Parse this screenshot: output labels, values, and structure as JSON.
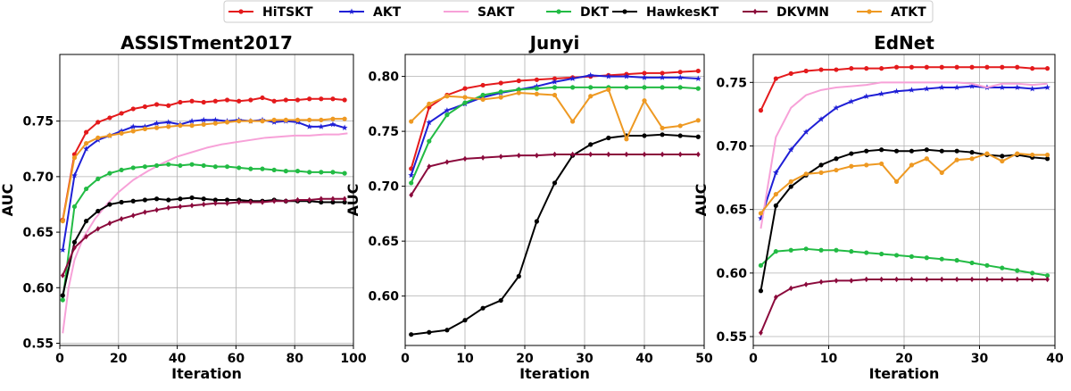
{
  "legend": {
    "placement": "top-center",
    "items": [
      {
        "label": "HiTSKT",
        "color": "#e41a1c",
        "marker": "circle"
      },
      {
        "label": "AKT",
        "color": "#1f1fd6",
        "marker": "star"
      },
      {
        "label": "SAKT",
        "color": "#f7a1d8",
        "marker": "none"
      },
      {
        "label": "DKT",
        "color": "#22bb44",
        "marker": "circle"
      },
      {
        "label": "HawkesKT",
        "color": "#000000",
        "marker": "circle"
      },
      {
        "label": "DKVMN",
        "color": "#8b0a3c",
        "marker": "diamond"
      },
      {
        "label": "ATKT",
        "color": "#ee9922",
        "marker": "circle"
      }
    ]
  },
  "chart_data": [
    {
      "type": "line",
      "title": "ASSISTment2017",
      "xlabel": "Iteration",
      "ylabel": "AUC",
      "xlim": [
        0,
        100
      ],
      "ylim": [
        0.548,
        0.81
      ],
      "xticks": [
        "0",
        "20",
        "40",
        "60",
        "80",
        "100"
      ],
      "xtick_values": [
        0,
        20,
        40,
        60,
        80,
        100
      ],
      "yticks": [
        "0.55",
        "0.60",
        "0.65",
        "0.70",
        "0.75"
      ],
      "ytick_values": [
        0.55,
        0.6,
        0.65,
        0.7,
        0.75
      ],
      "grid": true,
      "series": [
        {
          "name": "HiTSKT",
          "x": [
            1,
            5,
            9,
            13,
            17,
            21,
            25,
            29,
            33,
            37,
            41,
            45,
            49,
            53,
            57,
            61,
            65,
            69,
            73,
            77,
            81,
            85,
            89,
            93,
            97
          ],
          "y": [
            0.661,
            0.72,
            0.74,
            0.749,
            0.753,
            0.757,
            0.761,
            0.763,
            0.765,
            0.764,
            0.767,
            0.768,
            0.767,
            0.768,
            0.769,
            0.768,
            0.769,
            0.771,
            0.768,
            0.769,
            0.769,
            0.77,
            0.77,
            0.77,
            0.769
          ]
        },
        {
          "name": "AKT",
          "x": [
            1,
            5,
            9,
            13,
            17,
            21,
            25,
            29,
            33,
            37,
            41,
            45,
            49,
            53,
            57,
            61,
            65,
            69,
            73,
            77,
            81,
            85,
            89,
            93,
            97
          ],
          "y": [
            0.634,
            0.701,
            0.725,
            0.733,
            0.737,
            0.741,
            0.745,
            0.745,
            0.748,
            0.749,
            0.747,
            0.75,
            0.751,
            0.751,
            0.75,
            0.751,
            0.75,
            0.751,
            0.749,
            0.75,
            0.749,
            0.745,
            0.745,
            0.747,
            0.744
          ]
        },
        {
          "name": "SAKT",
          "x": [
            1,
            3,
            5,
            8,
            12,
            16,
            20,
            25,
            30,
            35,
            40,
            45,
            50,
            55,
            60,
            65,
            70,
            75,
            80,
            85,
            90,
            95,
            98
          ],
          "y": [
            0.559,
            0.6,
            0.625,
            0.645,
            0.662,
            0.675,
            0.686,
            0.697,
            0.705,
            0.712,
            0.718,
            0.722,
            0.726,
            0.729,
            0.731,
            0.733,
            0.735,
            0.736,
            0.737,
            0.737,
            0.738,
            0.738,
            0.739
          ]
        },
        {
          "name": "DKT",
          "x": [
            1,
            5,
            9,
            13,
            17,
            21,
            25,
            29,
            33,
            37,
            41,
            45,
            49,
            53,
            57,
            61,
            65,
            69,
            73,
            77,
            81,
            85,
            89,
            93,
            97
          ],
          "y": [
            0.589,
            0.673,
            0.689,
            0.698,
            0.703,
            0.706,
            0.708,
            0.709,
            0.71,
            0.711,
            0.71,
            0.711,
            0.71,
            0.709,
            0.709,
            0.708,
            0.707,
            0.707,
            0.706,
            0.705,
            0.705,
            0.704,
            0.704,
            0.704,
            0.703
          ]
        },
        {
          "name": "HawkesKT",
          "x": [
            1,
            5,
            9,
            13,
            17,
            21,
            25,
            29,
            33,
            37,
            41,
            45,
            49,
            53,
            57,
            61,
            65,
            69,
            73,
            77,
            81,
            85,
            89,
            93,
            97
          ],
          "y": [
            0.593,
            0.641,
            0.66,
            0.669,
            0.675,
            0.677,
            0.678,
            0.679,
            0.68,
            0.679,
            0.68,
            0.681,
            0.68,
            0.679,
            0.679,
            0.679,
            0.678,
            0.678,
            0.679,
            0.678,
            0.678,
            0.678,
            0.677,
            0.677,
            0.677
          ]
        },
        {
          "name": "DKVMN",
          "x": [
            1,
            5,
            9,
            13,
            17,
            21,
            25,
            29,
            33,
            37,
            41,
            45,
            49,
            53,
            57,
            61,
            65,
            69,
            73,
            77,
            81,
            85,
            89,
            93,
            97
          ],
          "y": [
            0.611,
            0.636,
            0.646,
            0.653,
            0.658,
            0.662,
            0.665,
            0.668,
            0.67,
            0.672,
            0.673,
            0.674,
            0.675,
            0.676,
            0.676,
            0.677,
            0.677,
            0.677,
            0.678,
            0.678,
            0.679,
            0.679,
            0.68,
            0.68,
            0.68
          ]
        },
        {
          "name": "ATKT",
          "x": [
            1,
            5,
            9,
            13,
            17,
            21,
            25,
            29,
            33,
            37,
            41,
            45,
            49,
            53,
            57,
            61,
            65,
            69,
            73,
            77,
            81,
            85,
            89,
            93,
            97
          ],
          "y": [
            0.66,
            0.717,
            0.73,
            0.735,
            0.737,
            0.739,
            0.741,
            0.743,
            0.744,
            0.745,
            0.746,
            0.746,
            0.747,
            0.748,
            0.749,
            0.75,
            0.75,
            0.75,
            0.751,
            0.751,
            0.751,
            0.751,
            0.751,
            0.752,
            0.752
          ]
        }
      ]
    },
    {
      "type": "line",
      "title": "Junyi",
      "xlabel": "Iteration",
      "ylabel": "AUC",
      "xlim": [
        0,
        50
      ],
      "ylim": [
        0.555,
        0.82
      ],
      "xticks": [
        "0",
        "10",
        "20",
        "30",
        "40",
        "50"
      ],
      "xtick_values": [
        0,
        10,
        20,
        30,
        40,
        50
      ],
      "yticks": [
        "0.60",
        "0.65",
        "0.70",
        "0.75",
        "0.80"
      ],
      "ytick_values": [
        0.6,
        0.65,
        0.7,
        0.75,
        0.8
      ],
      "grid": true,
      "series": [
        {
          "name": "HiTSKT",
          "x": [
            1,
            4,
            7,
            10,
            13,
            16,
            19,
            22,
            25,
            28,
            31,
            34,
            37,
            40,
            43,
            46,
            49
          ],
          "y": [
            0.716,
            0.772,
            0.783,
            0.789,
            0.792,
            0.794,
            0.796,
            0.797,
            0.798,
            0.799,
            0.8,
            0.801,
            0.802,
            0.803,
            0.803,
            0.804,
            0.805
          ]
        },
        {
          "name": "AKT",
          "x": [
            1,
            4,
            7,
            10,
            13,
            16,
            19,
            22,
            25,
            28,
            31,
            34,
            37,
            40,
            43,
            46,
            49
          ],
          "y": [
            0.71,
            0.758,
            0.769,
            0.775,
            0.781,
            0.785,
            0.788,
            0.791,
            0.795,
            0.798,
            0.801,
            0.8,
            0.8,
            0.799,
            0.799,
            0.799,
            0.798
          ]
        },
        {
          "name": "DKT",
          "x": [
            1,
            4,
            7,
            10,
            13,
            16,
            19,
            22,
            25,
            28,
            31,
            34,
            37,
            40,
            43,
            46,
            49
          ],
          "y": [
            0.703,
            0.741,
            0.765,
            0.776,
            0.783,
            0.786,
            0.788,
            0.789,
            0.79,
            0.79,
            0.79,
            0.79,
            0.79,
            0.79,
            0.79,
            0.79,
            0.789
          ]
        },
        {
          "name": "HawkesKT",
          "x": [
            1,
            4,
            7,
            10,
            13,
            16,
            19,
            22,
            25,
            28,
            31,
            34,
            37,
            40,
            43,
            46,
            49
          ],
          "y": [
            0.565,
            0.567,
            0.569,
            0.578,
            0.589,
            0.596,
            0.618,
            0.668,
            0.703,
            0.728,
            0.738,
            0.744,
            0.746,
            0.746,
            0.747,
            0.746,
            0.745
          ]
        },
        {
          "name": "DKVMN",
          "x": [
            1,
            4,
            7,
            10,
            13,
            16,
            19,
            22,
            25,
            28,
            31,
            34,
            37,
            40,
            43,
            46,
            49
          ],
          "y": [
            0.692,
            0.718,
            0.722,
            0.725,
            0.726,
            0.727,
            0.728,
            0.728,
            0.729,
            0.729,
            0.729,
            0.729,
            0.729,
            0.729,
            0.729,
            0.729,
            0.729
          ]
        },
        {
          "name": "ATKT",
          "x": [
            1,
            4,
            7,
            10,
            13,
            16,
            19,
            22,
            25,
            28,
            31,
            34,
            37,
            40,
            43,
            46,
            49
          ],
          "y": [
            0.759,
            0.775,
            0.782,
            0.781,
            0.779,
            0.781,
            0.785,
            0.784,
            0.783,
            0.759,
            0.782,
            0.788,
            0.743,
            0.778,
            0.753,
            0.755,
            0.76
          ]
        }
      ]
    },
    {
      "type": "line",
      "title": "EdNet",
      "xlabel": "Iteration",
      "ylabel": "AUC",
      "xlim": [
        0,
        40
      ],
      "ylim": [
        0.543,
        0.772
      ],
      "xticks": [
        "0",
        "10",
        "20",
        "30",
        "40"
      ],
      "xtick_values": [
        0,
        10,
        20,
        30,
        40
      ],
      "yticks": [
        "0.55",
        "0.60",
        "0.65",
        "0.70",
        "0.75"
      ],
      "ytick_values": [
        0.55,
        0.6,
        0.65,
        0.7,
        0.75
      ],
      "grid": true,
      "series": [
        {
          "name": "HiTSKT",
          "x": [
            1,
            3,
            5,
            7,
            9,
            11,
            13,
            15,
            17,
            19,
            21,
            23,
            25,
            27,
            29,
            31,
            33,
            35,
            37,
            39
          ],
          "y": [
            0.728,
            0.753,
            0.757,
            0.759,
            0.76,
            0.76,
            0.761,
            0.761,
            0.761,
            0.762,
            0.762,
            0.762,
            0.762,
            0.762,
            0.762,
            0.762,
            0.762,
            0.762,
            0.761,
            0.761
          ]
        },
        {
          "name": "AKT",
          "x": [
            1,
            3,
            5,
            7,
            9,
            11,
            13,
            15,
            17,
            19,
            21,
            23,
            25,
            27,
            29,
            31,
            33,
            35,
            37,
            39
          ],
          "y": [
            0.643,
            0.679,
            0.697,
            0.711,
            0.721,
            0.73,
            0.735,
            0.739,
            0.741,
            0.743,
            0.744,
            0.745,
            0.746,
            0.746,
            0.747,
            0.746,
            0.746,
            0.746,
            0.745,
            0.746
          ]
        },
        {
          "name": "SAKT",
          "x": [
            1,
            3,
            5,
            7,
            9,
            11,
            13,
            15,
            17,
            19,
            21,
            23,
            25,
            27,
            29,
            31,
            33,
            35,
            37,
            39
          ],
          "y": [
            0.635,
            0.707,
            0.73,
            0.74,
            0.744,
            0.746,
            0.747,
            0.748,
            0.75,
            0.75,
            0.75,
            0.75,
            0.75,
            0.75,
            0.749,
            0.746,
            0.749,
            0.749,
            0.748,
            0.749
          ]
        },
        {
          "name": "DKT",
          "x": [
            1,
            3,
            5,
            7,
            9,
            11,
            13,
            15,
            17,
            19,
            21,
            23,
            25,
            27,
            29,
            31,
            33,
            35,
            37,
            39
          ],
          "y": [
            0.606,
            0.617,
            0.618,
            0.619,
            0.618,
            0.618,
            0.617,
            0.616,
            0.615,
            0.614,
            0.613,
            0.612,
            0.611,
            0.61,
            0.608,
            0.606,
            0.604,
            0.602,
            0.6,
            0.598
          ]
        },
        {
          "name": "HawkesKT",
          "x": [
            1,
            3,
            5,
            7,
            9,
            11,
            13,
            15,
            17,
            19,
            21,
            23,
            25,
            27,
            29,
            31,
            33,
            35,
            37,
            39
          ],
          "y": [
            0.586,
            0.653,
            0.668,
            0.677,
            0.685,
            0.69,
            0.694,
            0.696,
            0.697,
            0.696,
            0.696,
            0.697,
            0.696,
            0.696,
            0.695,
            0.693,
            0.692,
            0.693,
            0.691,
            0.69
          ]
        },
        {
          "name": "DKVMN",
          "x": [
            1,
            3,
            5,
            7,
            9,
            11,
            13,
            15,
            17,
            19,
            21,
            23,
            25,
            27,
            29,
            31,
            33,
            35,
            37,
            39
          ],
          "y": [
            0.553,
            0.581,
            0.588,
            0.591,
            0.593,
            0.594,
            0.594,
            0.595,
            0.595,
            0.595,
            0.595,
            0.595,
            0.595,
            0.595,
            0.595,
            0.595,
            0.595,
            0.595,
            0.595,
            0.595
          ]
        },
        {
          "name": "ATKT",
          "x": [
            1,
            3,
            5,
            7,
            9,
            11,
            13,
            15,
            17,
            19,
            21,
            23,
            25,
            27,
            29,
            31,
            33,
            35,
            37,
            39
          ],
          "y": [
            0.647,
            0.662,
            0.672,
            0.678,
            0.679,
            0.681,
            0.684,
            0.685,
            0.686,
            0.672,
            0.685,
            0.69,
            0.679,
            0.689,
            0.69,
            0.694,
            0.688,
            0.694,
            0.693,
            0.693
          ]
        }
      ]
    }
  ]
}
